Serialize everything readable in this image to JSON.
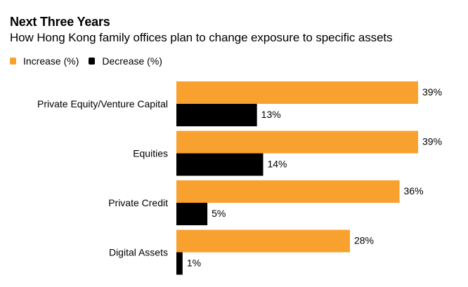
{
  "chart_data": {
    "type": "bar",
    "orientation": "horizontal",
    "title": "Next Three Years",
    "subtitle": "How Hong Kong family offices plan to change exposure to specific assets",
    "categories": [
      "Private Equity/Venture Capital",
      "Equities",
      "Private Credit",
      "Digital Assets"
    ],
    "series": [
      {
        "name": "Increase (%)",
        "color": "#f9a12e",
        "values": [
          39,
          39,
          36,
          28
        ]
      },
      {
        "name": "Decrease (%)",
        "color": "#000000",
        "values": [
          13,
          14,
          5,
          1
        ]
      }
    ],
    "value_suffix": "%",
    "xlabel": "",
    "ylabel": "",
    "xlim": [
      0,
      39
    ],
    "grid": false,
    "legend": "top-left"
  }
}
